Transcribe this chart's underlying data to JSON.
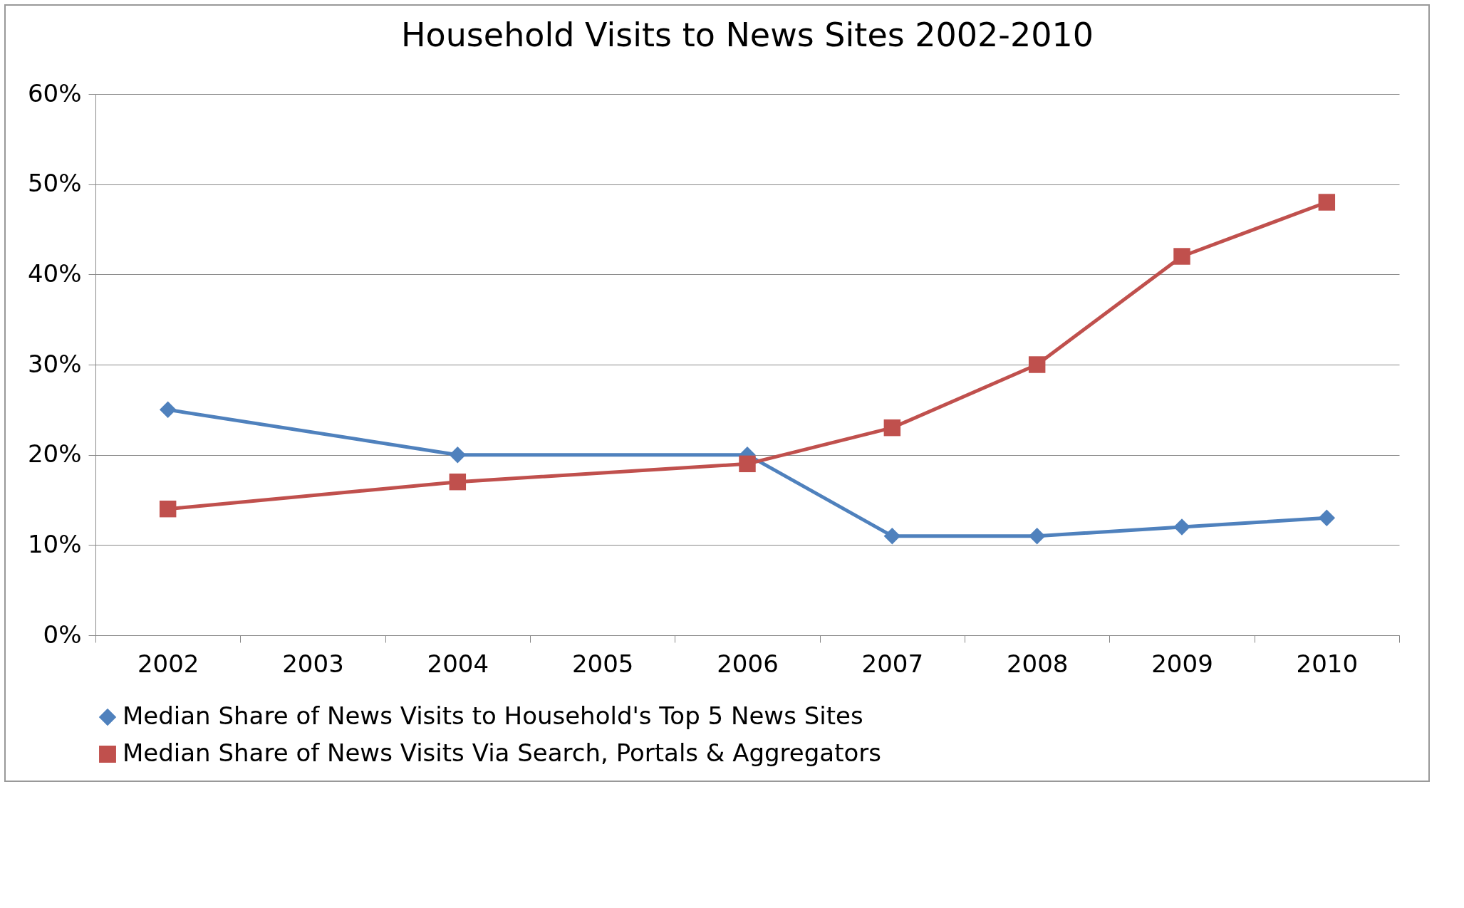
{
  "chart_data": {
    "type": "line",
    "title": "Household Visits to News Sites 2002-2010",
    "categories": [
      "2002",
      "2003",
      "2004",
      "2005",
      "2006",
      "2007",
      "2008",
      "2009",
      "2010"
    ],
    "series": [
      {
        "name": "Median Share of News Visits to Household's Top 5 News Sites",
        "color": "#4f81bd",
        "marker": "diamond",
        "values": [
          25,
          null,
          20,
          null,
          20,
          11,
          11,
          12,
          13
        ]
      },
      {
        "name": "Median Share of News Visits Via Search, Portals & Aggregators",
        "color": "#c0504d",
        "marker": "square",
        "values": [
          14,
          null,
          17,
          null,
          19,
          23,
          30,
          42,
          48
        ]
      }
    ],
    "ylim": [
      0,
      60
    ],
    "yticks": [
      {
        "value": 0,
        "label": "0%"
      },
      {
        "value": 10,
        "label": "10%"
      },
      {
        "value": 20,
        "label": "20%"
      },
      {
        "value": 30,
        "label": "30%"
      },
      {
        "value": 40,
        "label": "40%"
      },
      {
        "value": 50,
        "label": "50%"
      },
      {
        "value": 60,
        "label": "60%"
      }
    ],
    "grid": "y",
    "legend": "bottom"
  }
}
